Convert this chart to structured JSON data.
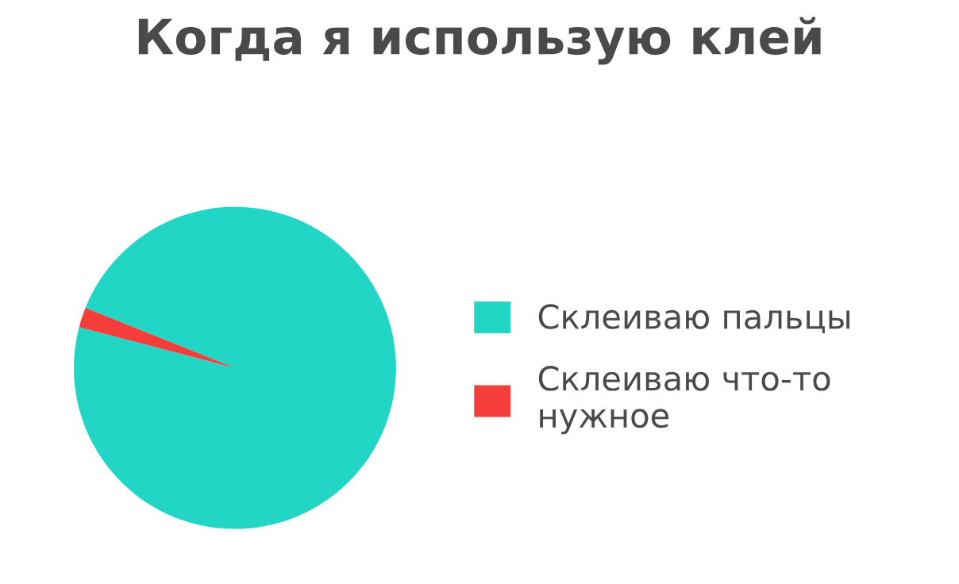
{
  "chart_data": {
    "type": "pie",
    "title": "Когда я использую клей",
    "categories": [
      "Склеиваю пальцы",
      "Склеиваю что-то\nнужное"
    ],
    "values": [
      98,
      2
    ],
    "colors": [
      "#22d6c6",
      "#f53e3a"
    ],
    "legend": "right"
  }
}
